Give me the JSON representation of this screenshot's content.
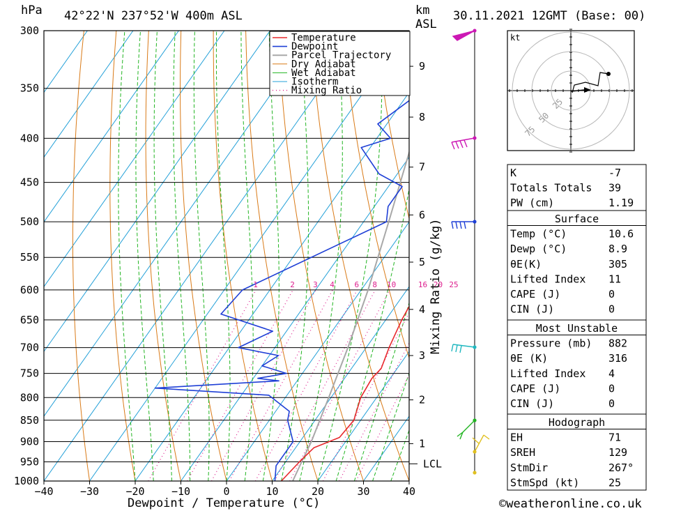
{
  "header": {
    "pressure_unit": "hPa",
    "location": "42°22'N  237°52'W  400m  ASL",
    "km_unit": "km",
    "km_sub": "ASL",
    "datetime": "30.11.2021  12GMT  (Base: 00)"
  },
  "footer": {
    "credit": "©weatheronline.co.uk"
  },
  "colors": {
    "temperature": "#e8282c",
    "dewpoint": "#1e3fd6",
    "parcel": "#a8a8a8",
    "dry_adiabat": "#d97a17",
    "wet_adiabat": "#21b421",
    "isotherm": "#23a0d8",
    "mixing_ratio": "#dd1d8d"
  },
  "chart_data": {
    "type": "line",
    "title": "42°22'N  237°52'W  400m  ASL",
    "xlabel": "Dewpoint / Temperature (°C)",
    "ylabel": "hPa",
    "x_ticks": [
      -40,
      -30,
      -20,
      -10,
      0,
      10,
      20,
      30,
      40
    ],
    "xlim": [
      -40,
      40
    ],
    "ylim": [
      300,
      1000
    ],
    "pressure_levels": [
      300,
      350,
      400,
      450,
      500,
      550,
      600,
      650,
      700,
      750,
      800,
      850,
      900,
      950,
      1000
    ],
    "km_ticks": [
      {
        "label": "1",
        "p": 905
      },
      {
        "label": "2",
        "p": 805
      },
      {
        "label": "3",
        "p": 715
      },
      {
        "label": "4",
        "p": 632
      },
      {
        "label": "5",
        "p": 557
      },
      {
        "label": "6",
        "p": 491
      },
      {
        "label": "7",
        "p": 432
      },
      {
        "label": "8",
        "p": 378
      },
      {
        "label": "9",
        "p": 330
      }
    ],
    "lcl_label": "LCL",
    "lcl_pressure": 955,
    "mixing_ratio_label": "Mixing Ratio (g/kg)",
    "mixing_ratio_values": [
      "1",
      "2",
      "3",
      "4",
      "6",
      "8",
      "10",
      "16",
      "20",
      "25"
    ],
    "legend": [
      "Temperature",
      "Dewpoint",
      "Parcel Trajectory",
      "Dry Adiabat",
      "Wet Adiabat",
      "Isotherm",
      "Mixing Ratio"
    ],
    "series": [
      {
        "name": "Temperature",
        "points": [
          [
            300,
            -3.0
          ],
          [
            350,
            1.0
          ],
          [
            400,
            4.0
          ],
          [
            430,
            6.5
          ],
          [
            450,
            5.5
          ],
          [
            480,
            7.0
          ],
          [
            500,
            7.0
          ],
          [
            550,
            10.5
          ],
          [
            600,
            12.5
          ],
          [
            650,
            13.5
          ],
          [
            700,
            15.0
          ],
          [
            740,
            16.5
          ],
          [
            760,
            16.0
          ],
          [
            800,
            16.5
          ],
          [
            850,
            18.5
          ],
          [
            890,
            18.0
          ],
          [
            915,
            14.0
          ],
          [
            950,
            13.0
          ],
          [
            1000,
            12.0
          ]
        ]
      },
      {
        "name": "Dewpoint",
        "points": [
          [
            300,
            -17.5
          ],
          [
            320,
            -12.5
          ],
          [
            350,
            -17.0
          ],
          [
            385,
            -22.0
          ],
          [
            400,
            -17.0
          ],
          [
            410,
            -22.0
          ],
          [
            440,
            -14.0
          ],
          [
            455,
            -7.0
          ],
          [
            480,
            -7.0
          ],
          [
            500,
            -5.0
          ],
          [
            600,
            -26.0
          ],
          [
            640,
            -27.0
          ],
          [
            670,
            -13.0
          ],
          [
            700,
            -18.0
          ],
          [
            715,
            -8.0
          ],
          [
            735,
            -10.0
          ],
          [
            750,
            -3.5
          ],
          [
            760,
            -9.0
          ],
          [
            765,
            -4.0
          ],
          [
            780,
            -30.0
          ],
          [
            795,
            -4.0
          ],
          [
            830,
            3.0
          ],
          [
            850,
            4.0
          ],
          [
            900,
            8.5
          ],
          [
            915,
            8.5
          ],
          [
            960,
            8.5
          ],
          [
            1000,
            10.6
          ]
        ]
      },
      {
        "name": "Parcel Trajectory",
        "points": [
          [
            300,
            -19.0
          ],
          [
            400,
            -12.0
          ],
          [
            500,
            -4.5
          ],
          [
            600,
            1.5
          ],
          [
            700,
            6.0
          ],
          [
            800,
            9.5
          ],
          [
            900,
            12.5
          ],
          [
            950,
            13.5
          ],
          [
            1000,
            14.5
          ]
        ]
      }
    ]
  },
  "hodograph": {
    "unit": "kt",
    "rings": [
      "25",
      "50",
      "75"
    ]
  },
  "indices_table": {
    "rows": [
      {
        "label": "K",
        "value": "-7"
      },
      {
        "label": "Totals Totals",
        "value": "39"
      },
      {
        "label": "PW (cm)",
        "value": "1.19"
      }
    ]
  },
  "surface_table": {
    "title": "Surface",
    "rows": [
      {
        "label": "Temp (°C)",
        "value": "10.6"
      },
      {
        "label": "Dewp (°C)",
        "value": "8.9"
      },
      {
        "label": "θE(K)",
        "value": "305"
      },
      {
        "label": "Lifted Index",
        "value": "11"
      },
      {
        "label": "CAPE (J)",
        "value": "0"
      },
      {
        "label": "CIN (J)",
        "value": "0"
      }
    ]
  },
  "unstable_table": {
    "title": "Most Unstable",
    "rows": [
      {
        "label": "Pressure (mb)",
        "value": "882"
      },
      {
        "label": "θE (K)",
        "value": "316"
      },
      {
        "label": "Lifted Index",
        "value": "4"
      },
      {
        "label": "CAPE (J)",
        "value": "0"
      },
      {
        "label": "CIN (J)",
        "value": "0"
      }
    ]
  },
  "hodo_table": {
    "title": "Hodograph",
    "rows": [
      {
        "label": "EH",
        "value": "71"
      },
      {
        "label": "SREH",
        "value": "129"
      },
      {
        "label": "StmDir",
        "value": "267°"
      },
      {
        "label": "StmSpd (kt)",
        "value": "25"
      }
    ]
  }
}
